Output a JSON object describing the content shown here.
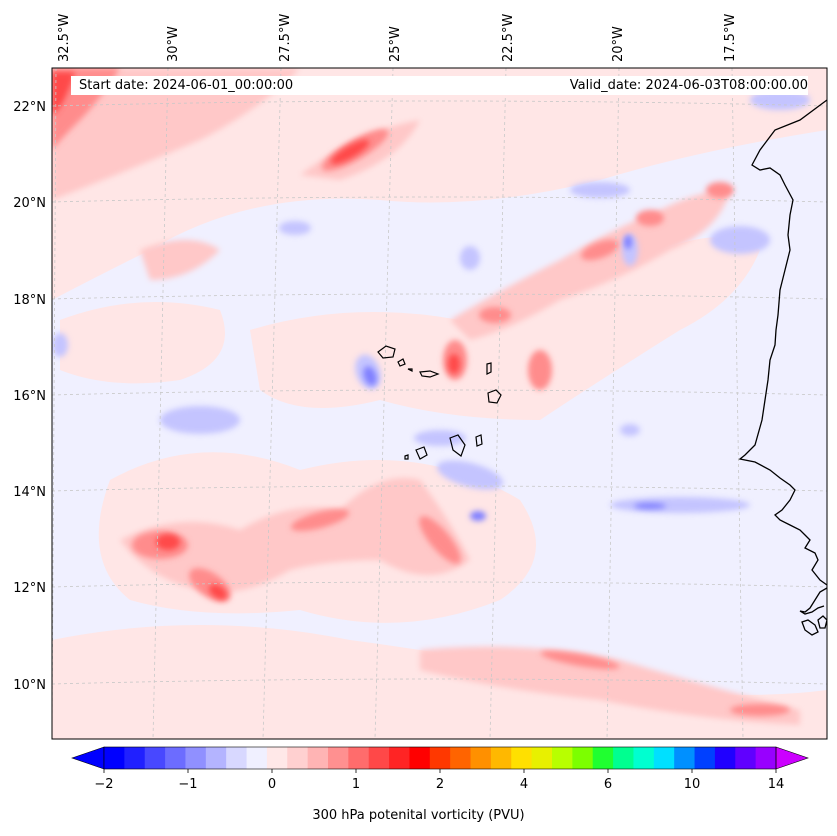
{
  "header": {
    "start_label": "Start date: 2024-06-01_00:00:00",
    "valid_label": "Valid_date: 2024-06-03T08:00:00.00"
  },
  "map": {
    "projection": "tilted conic (longitude lines converge slightly)",
    "extent": {
      "lon": [
        "-33.0",
        "-15.0"
      ],
      "lat": [
        "8.8",
        "22.8"
      ]
    },
    "gridlines": "dashed light gray",
    "coastlines": "black",
    "longitude_labels": [
      "32.5°W",
      "30°W",
      "27.5°W",
      "25°W",
      "22.5°W",
      "20°W",
      "17.5°W"
    ],
    "latitude_labels": [
      "22°N",
      "20°N",
      "18°N",
      "16°N",
      "14°N",
      "12°N",
      "10°N"
    ],
    "regions_depicted": [
      "Cape Verde islands",
      "West African coast (Mauritania/Senegal)"
    ]
  },
  "colorbar": {
    "label": "300 hPa potenital vorticity (PVU)",
    "tick_labels": [
      "−2",
      "−1",
      "0",
      "1",
      "2",
      "4",
      "6",
      "10",
      "14"
    ],
    "colors": [
      "#0000ff",
      "#2020ff",
      "#4848ff",
      "#6c6cff",
      "#9090ff",
      "#b4b4ff",
      "#d8d8ff",
      "#f0f0ff",
      "#ffe8e8",
      "#ffd0d0",
      "#ffb4b4",
      "#ff9090",
      "#ff6c6c",
      "#ff4848",
      "#ff2424",
      "#ff0000",
      "#ff3800",
      "#ff6400",
      "#ff9000",
      "#ffb800",
      "#ffe000",
      "#e8f000",
      "#b8ff00",
      "#7cff00",
      "#20ff30",
      "#00ff90",
      "#00ffd0",
      "#00e0ff",
      "#0090ff",
      "#0040ff",
      "#2000ff",
      "#6000ff",
      "#9800ff"
    ],
    "extend": "both",
    "under_color": "#0000ff",
    "over_color": "#cc00ff"
  }
}
